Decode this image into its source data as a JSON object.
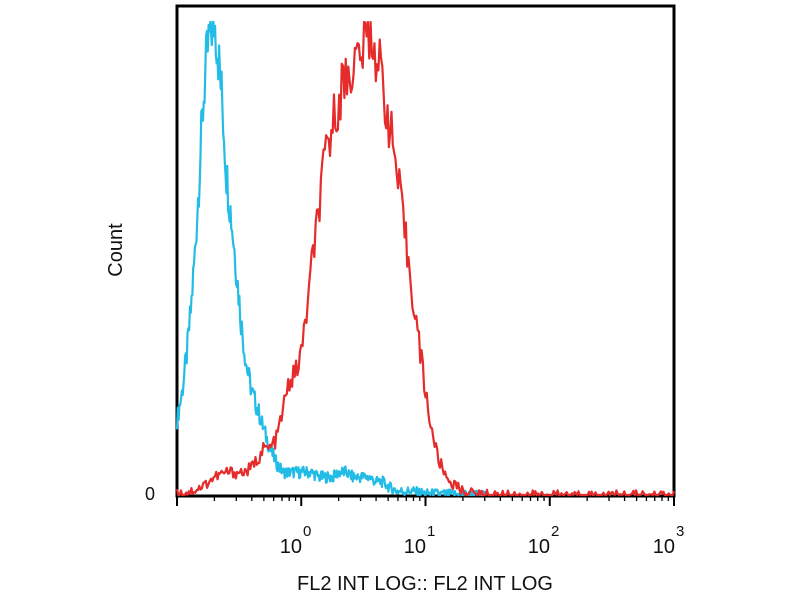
{
  "chart_data": {
    "type": "line",
    "xlabel": "FL2 INT LOG:: FL2 INT LOG",
    "ylabel": "Count",
    "x_scale": "log",
    "x_tick_labels": [
      {
        "base": "10",
        "exp": "0"
      },
      {
        "base": "10",
        "exp": "1"
      },
      {
        "base": "10",
        "exp": "2"
      },
      {
        "base": "10",
        "exp": "3"
      }
    ],
    "xlim": [
      0.1,
      1000
    ],
    "y_tick_labels": [
      "0"
    ],
    "ylim": [
      0,
      100
    ],
    "grid": false,
    "series": [
      {
        "color": "#22bce6",
        "x": [
          0.1,
          0.11,
          0.12,
          0.13,
          0.14,
          0.15,
          0.16,
          0.17,
          0.18,
          0.19,
          0.2,
          0.21,
          0.22,
          0.23,
          0.24,
          0.25,
          0.27,
          0.29,
          0.31,
          0.33,
          0.36,
          0.4,
          0.45,
          0.5,
          0.56,
          0.63,
          0.71,
          0.8,
          0.9,
          1.0,
          1.2,
          1.4,
          1.6,
          1.8,
          2.0,
          2.3,
          2.6,
          3.0,
          3.5,
          4.0,
          4.5,
          5.0,
          6.0,
          7.0,
          8.0,
          10,
          12,
          15,
          20,
          25,
          30
        ],
        "y": [
          16,
          22,
          30,
          40,
          52,
          66,
          80,
          90,
          96,
          99,
          100,
          96,
          90,
          84,
          76,
          68,
          60,
          52,
          44,
          36,
          28,
          22,
          18,
          14,
          10,
          7,
          5,
          5,
          5,
          5,
          5,
          4,
          4,
          4,
          5,
          5,
          4,
          4,
          4,
          3,
          3,
          2,
          1,
          1,
          1,
          0.5,
          0.5,
          0.4,
          0.3,
          0.2,
          0.2
        ]
      },
      {
        "color": "#e62b2b",
        "x": [
          0.1,
          0.13,
          0.16,
          0.2,
          0.25,
          0.3,
          0.35,
          0.4,
          0.45,
          0.5,
          0.56,
          0.63,
          0.71,
          0.8,
          0.9,
          1.0,
          1.12,
          1.26,
          1.41,
          1.58,
          1.78,
          2.0,
          2.24,
          2.51,
          2.82,
          3.16,
          3.55,
          3.98,
          4.47,
          5.01,
          5.62,
          6.31,
          7.08,
          7.94,
          8.91,
          10.0,
          11.2,
          12.6,
          14.1,
          15.8,
          17.8,
          20,
          25,
          30,
          50,
          100,
          200,
          500,
          1000
        ],
        "y": [
          0.5,
          1,
          2,
          4,
          5,
          5,
          5,
          6,
          8,
          10,
          10,
          12,
          18,
          24,
          26,
          30,
          40,
          52,
          62,
          72,
          78,
          84,
          88,
          90,
          92,
          95,
          98,
          94,
          88,
          80,
          72,
          62,
          52,
          42,
          32,
          22,
          14,
          8,
          5,
          3,
          2,
          1,
          0.5,
          0.3,
          0.2,
          0.2,
          0.2,
          0.2,
          0.2
        ]
      }
    ]
  }
}
